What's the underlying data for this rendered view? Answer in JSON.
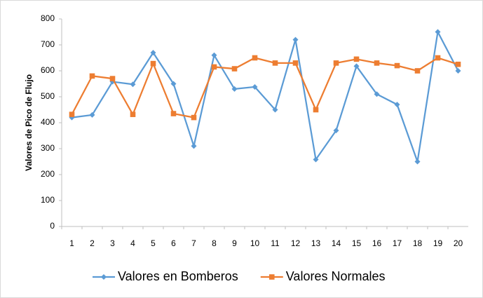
{
  "chart_data": {
    "type": "line",
    "y_label": "Valores de Pico de Flujo",
    "categories": [
      "1",
      "2",
      "3",
      "4",
      "5",
      "6",
      "7",
      "8",
      "9",
      "10",
      "11",
      "12",
      "13",
      "14",
      "15",
      "16",
      "17",
      "18",
      "19",
      "20"
    ],
    "series": [
      {
        "name": "Valores en Bomberos",
        "color": "#5b9bd5",
        "marker": "diamond",
        "values": [
          420,
          430,
          558,
          548,
          670,
          550,
          310,
          660,
          530,
          538,
          450,
          720,
          258,
          370,
          618,
          510,
          470,
          250,
          750,
          600
        ]
      },
      {
        "name": "Valores Normales",
        "color": "#ed7d31",
        "marker": "square",
        "values": [
          432,
          580,
          570,
          432,
          628,
          435,
          420,
          615,
          608,
          650,
          630,
          630,
          450,
          630,
          645,
          630,
          620,
          600,
          650,
          625
        ]
      }
    ],
    "ylim": [
      0,
      800
    ],
    "yticks": [
      0,
      100,
      200,
      300,
      400,
      500,
      600,
      700,
      800
    ],
    "grid": false,
    "legend": "bottom"
  }
}
